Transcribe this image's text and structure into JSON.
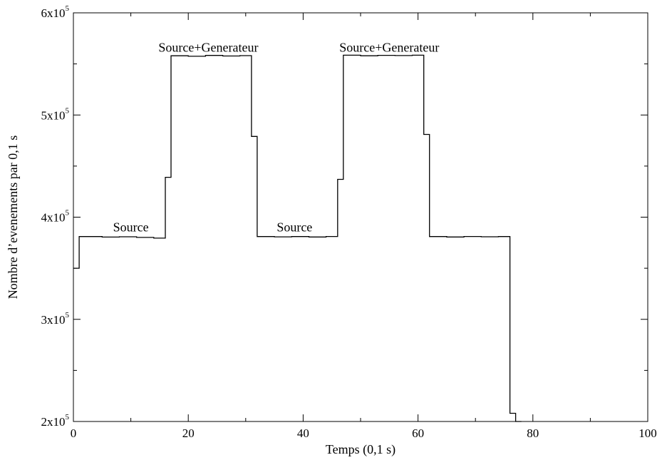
{
  "chart_data": {
    "type": "line",
    "title": "",
    "xlabel": "Temps (0,1 s)",
    "ylabel": "Nombre d’evenements par 0,1 s",
    "xlim": [
      0,
      100
    ],
    "ylim": [
      200000,
      600000
    ],
    "grid": false,
    "step": true,
    "x_ticks": [
      {
        "value": 0,
        "label": "0"
      },
      {
        "value": 20,
        "label": "20"
      },
      {
        "value": 40,
        "label": "40"
      },
      {
        "value": 60,
        "label": "60"
      },
      {
        "value": 80,
        "label": "80"
      },
      {
        "value": 100,
        "label": "100"
      }
    ],
    "y_ticks": [
      {
        "value": 200000,
        "mantissa": "2x10",
        "exponent": "5"
      },
      {
        "value": 300000,
        "mantissa": "3x10",
        "exponent": "5"
      },
      {
        "value": 400000,
        "mantissa": "4x10",
        "exponent": "5"
      },
      {
        "value": 500000,
        "mantissa": "5x10",
        "exponent": "5"
      },
      {
        "value": 600000,
        "mantissa": "6x10",
        "exponent": "5"
      }
    ],
    "series": [
      {
        "x": [
          0,
          1,
          2,
          5,
          8,
          11,
          14,
          16,
          17,
          20,
          23,
          26,
          29,
          31,
          32,
          35,
          38,
          41,
          44,
          46,
          47,
          50,
          53,
          56,
          59,
          61,
          62,
          65,
          68,
          71,
          74,
          76,
          77
        ],
        "y": [
          350000,
          381000,
          381000,
          380500,
          380800,
          380200,
          379500,
          439000,
          558000,
          557500,
          558300,
          557800,
          558100,
          479000,
          381000,
          380700,
          381000,
          380600,
          381100,
          437000,
          558500,
          558000,
          558400,
          558200,
          558500,
          481000,
          381000,
          380600,
          381100,
          380800,
          381000,
          208000,
          200000
        ]
      }
    ],
    "annotations": [
      {
        "text": "Source",
        "x": 10,
        "y": 386000
      },
      {
        "text": "Source+Generateur",
        "x": 23.5,
        "y": 562000
      },
      {
        "text": "Source",
        "x": 38.5,
        "y": 386000
      },
      {
        "text": "Source+Generateur",
        "x": 55,
        "y": 562000
      }
    ]
  }
}
